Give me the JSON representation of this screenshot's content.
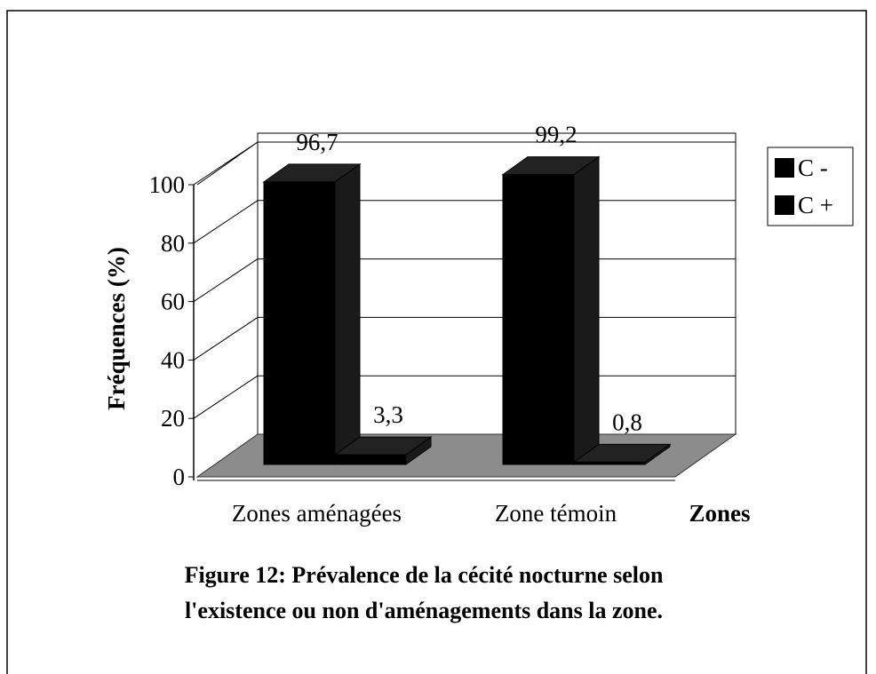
{
  "chart_data": {
    "type": "bar3d",
    "caption": [
      "Figure 12: Prévalence de la cécité nocturne selon",
      "l'existence ou non d'aménagements dans la zone."
    ],
    "y_label": "Fréquences (%)",
    "x_label": "Zones",
    "categories": [
      "Zones aménagées",
      "Zone témoin"
    ],
    "series": [
      {
        "name": "C -",
        "color": "#000000",
        "values": [
          96.7,
          99.2
        ],
        "value_labels": [
          "96,7",
          "99,2"
        ]
      },
      {
        "name": "C +",
        "color": "#000000",
        "values": [
          3.3,
          0.8
        ],
        "value_labels": [
          "3,3",
          "0,8"
        ]
      }
    ],
    "ylim": [
      0,
      100
    ],
    "yticks": [
      0,
      20,
      40,
      60,
      80,
      100
    ],
    "grid": true,
    "legend": "right"
  }
}
